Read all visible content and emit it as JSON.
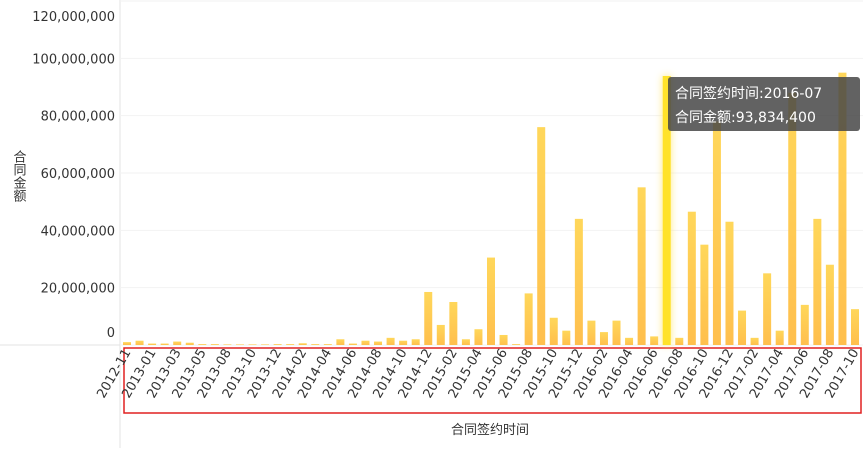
{
  "chart_data": {
    "type": "bar",
    "x_label": "合同签约时间",
    "y_label": "合同金额",
    "categories": [
      "2012-11",
      null,
      "2013-01",
      null,
      "2013-03",
      null,
      "2013-05",
      null,
      "2013-08",
      null,
      "2013-10",
      null,
      "2013-12",
      null,
      "2014-02",
      null,
      "2014-04",
      null,
      "2014-06",
      null,
      "2014-08",
      null,
      "2014-10",
      null,
      "2014-12",
      null,
      "2015-02",
      null,
      "2015-04",
      null,
      "2015-06",
      null,
      "2015-08",
      null,
      "2015-10",
      null,
      "2015-12",
      null,
      "2016-02",
      null,
      "2016-04",
      null,
      "2016-06",
      null,
      "2016-08",
      null,
      "2016-10",
      null,
      "2016-12",
      null,
      "2017-02",
      null,
      "2017-04",
      null,
      "2017-06",
      null,
      "2017-08",
      null,
      "2017-10"
    ],
    "values": [
      1000000,
      1500000,
      500000,
      500000,
      1200000,
      800000,
      300000,
      300000,
      200000,
      200000,
      200000,
      200000,
      300000,
      300000,
      600000,
      300000,
      300000,
      2000000,
      500000,
      1500000,
      1200000,
      2500000,
      1500000,
      2000000,
      18500000,
      7000000,
      15000000,
      2000000,
      5500000,
      30500000,
      3500000,
      300000,
      18000000,
      76000000,
      9500000,
      5000000,
      44000000,
      8500000,
      4500000,
      8500000,
      2500000,
      55000000,
      3000000,
      93834400,
      2500000,
      46500000,
      35000000,
      78000000,
      43000000,
      12000000,
      2500000,
      25000000,
      5000000,
      88000000,
      14000000,
      44000000,
      28000000,
      95000000,
      12500000
    ],
    "color": "#ffc94d",
    "ylim": [
      0,
      120000000
    ],
    "yticks": [
      {
        "value": 0,
        "label": "0"
      },
      {
        "value": 20000000,
        "label": "20,000,000"
      },
      {
        "value": 40000000,
        "label": "40,000,000"
      },
      {
        "value": 60000000,
        "label": "60,000,000"
      },
      {
        "value": 80000000,
        "label": "80,000,000"
      },
      {
        "value": 100000000,
        "label": "100,000,000"
      },
      {
        "value": 120000000,
        "label": "120,000,000"
      }
    ],
    "grid": true,
    "tooltip": [
      "合同签约时间:2016-07",
      "合同金额:93,834,400"
    ]
  }
}
